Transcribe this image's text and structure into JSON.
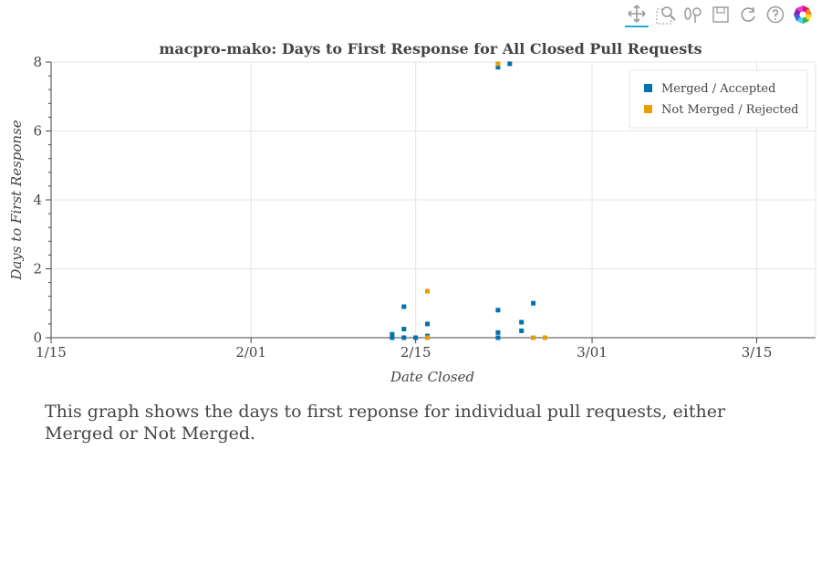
{
  "colors": {
    "merged": "#0072b2",
    "not_merged": "#e69f00",
    "grid": "#e5e5e5",
    "axis": "#444444",
    "text": "#444444"
  },
  "toolbar": {
    "tools": [
      {
        "name": "pan",
        "icon": "move-icon",
        "active": true
      },
      {
        "name": "box-zoom",
        "icon": "box-zoom-icon"
      },
      {
        "name": "wheel-zoom",
        "icon": "wheel-zoom-icon"
      },
      {
        "name": "save",
        "icon": "save-icon"
      },
      {
        "name": "reset",
        "icon": "reset-icon"
      },
      {
        "name": "help",
        "icon": "help-icon"
      },
      {
        "name": "bokeh-logo",
        "icon": "bokeh-logo-icon"
      }
    ]
  },
  "chart_data": {
    "type": "scatter",
    "title": "macpro-mako: Days to First Response for All Closed Pull Requests",
    "xlabel": "Date Closed",
    "ylabel": "Days to First Response",
    "x_ticks": [
      "1/15",
      "2/01",
      "2/15",
      "3/01",
      "3/15"
    ],
    "x_tick_dates": [
      "2024-01-15",
      "2024-02-01",
      "2024-02-15",
      "2024-03-01",
      "2024-03-15"
    ],
    "xlim": [
      "2024-01-15",
      "2024-03-20"
    ],
    "ylim": [
      0,
      8
    ],
    "y_ticks": [
      0,
      2,
      4,
      6,
      8
    ],
    "grid": true,
    "legend_position": "top-right",
    "series": [
      {
        "name": "Merged / Accepted",
        "color": "#0072b2",
        "points": [
          {
            "x": "2024-02-13",
            "y": 0.0
          },
          {
            "x": "2024-02-13",
            "y": 0.1
          },
          {
            "x": "2024-02-14",
            "y": 0.9
          },
          {
            "x": "2024-02-14",
            "y": 0.25
          },
          {
            "x": "2024-02-14",
            "y": 0.0
          },
          {
            "x": "2024-02-15",
            "y": 0.0
          },
          {
            "x": "2024-02-16",
            "y": 0.4
          },
          {
            "x": "2024-02-16",
            "y": 0.05
          },
          {
            "x": "2024-02-22",
            "y": 7.85
          },
          {
            "x": "2024-02-22",
            "y": 0.8
          },
          {
            "x": "2024-02-22",
            "y": 0.15
          },
          {
            "x": "2024-02-22",
            "y": 0.0
          },
          {
            "x": "2024-02-23",
            "y": 7.95
          },
          {
            "x": "2024-02-24",
            "y": 0.45
          },
          {
            "x": "2024-02-24",
            "y": 0.2
          },
          {
            "x": "2024-02-25",
            "y": 1.0
          },
          {
            "x": "2024-02-25",
            "y": 0.0
          }
        ]
      },
      {
        "name": "Not Merged / Rejected",
        "color": "#e69f00",
        "points": [
          {
            "x": "2024-02-16",
            "y": 1.35
          },
          {
            "x": "2024-02-16",
            "y": 0.0
          },
          {
            "x": "2024-02-22",
            "y": 7.95
          },
          {
            "x": "2024-02-25",
            "y": 0.0
          },
          {
            "x": "2024-02-26",
            "y": 0.0
          }
        ]
      }
    ]
  },
  "caption": "This graph shows the days to first reponse for individual pull requests, either Merged or Not Merged."
}
